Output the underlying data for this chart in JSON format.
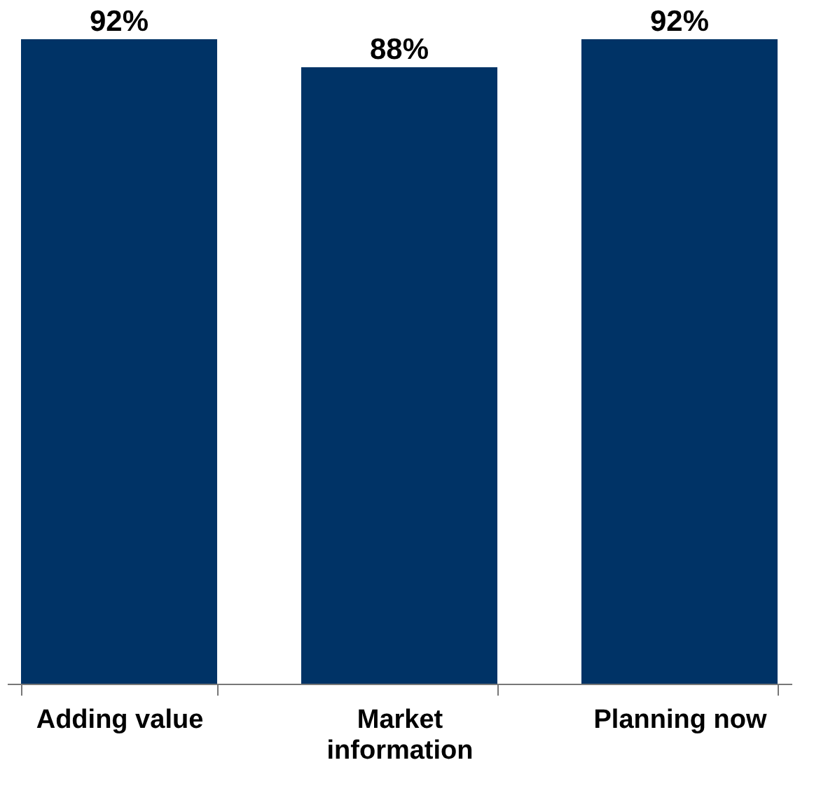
{
  "chart_data": {
    "type": "bar",
    "categories": [
      "Adding value",
      "Market information",
      "Planning now"
    ],
    "values": [
      92,
      88,
      92
    ],
    "value_labels": [
      "92%",
      "88%",
      "92%"
    ],
    "color": "#003366"
  }
}
